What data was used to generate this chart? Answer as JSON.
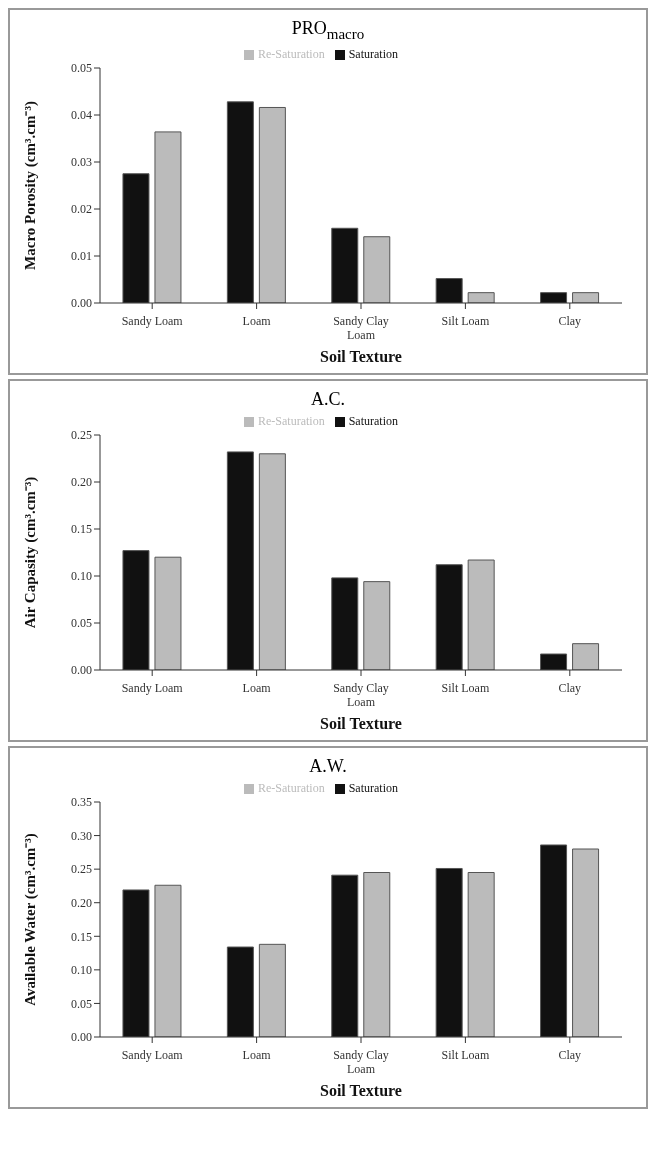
{
  "chart_data": [
    {
      "type": "bar",
      "title": "PRO$_{macro}$",
      "xlabel": "Soil Texture",
      "ylabel": "Macro Porosity (cm³.cm⁻³)",
      "categories": [
        "Sandy Loam",
        "Loam",
        "Sandy Clay Loam",
        "Silt Loam",
        "Clay"
      ],
      "series": [
        {
          "name": "Saturation",
          "color": "#111111",
          "values": [
            0.0275,
            0.0428,
            0.0159,
            0.0052,
            0.0022
          ]
        },
        {
          "name": "Re-Saturation",
          "color": "#bbbbbb",
          "values": [
            0.0364,
            0.0416,
            0.0141,
            0.0022,
            0.0022
          ]
        }
      ],
      "ylim": [
        0,
        0.05
      ],
      "yticks": [
        {
          "value": 0,
          "label": "0.00"
        },
        {
          "value": 0.01,
          "label": "0.01"
        },
        {
          "value": 0.02,
          "label": "0.02"
        },
        {
          "value": 0.03,
          "label": "0.03"
        },
        {
          "value": 0.04,
          "label": "0.04"
        },
        {
          "value": 0.05,
          "label": "0.05"
        }
      ],
      "grid": false,
      "legend": "top"
    },
    {
      "type": "bar",
      "title": "A.C.",
      "xlabel": "Soil Texture",
      "ylabel": "Air Capasity (cm³.cm⁻³)",
      "categories": [
        "Sandy Loam",
        "Loam",
        "Sandy Clay Loam",
        "Silt Loam",
        "Clay"
      ],
      "series": [
        {
          "name": "Saturation",
          "color": "#111111",
          "values": [
            0.127,
            0.232,
            0.098,
            0.112,
            0.017
          ]
        },
        {
          "name": "Re-Saturation",
          "color": "#bbbbbb",
          "values": [
            0.12,
            0.23,
            0.094,
            0.117,
            0.028
          ]
        }
      ],
      "ylim": [
        0,
        0.25
      ],
      "yticks": [
        {
          "value": 0,
          "label": "0.00"
        },
        {
          "value": 0.05,
          "label": "0.05"
        },
        {
          "value": 0.1,
          "label": "0.10"
        },
        {
          "value": 0.15,
          "label": "0.15"
        },
        {
          "value": 0.2,
          "label": "0.20"
        },
        {
          "value": 0.25,
          "label": "0.25"
        }
      ],
      "grid": false,
      "legend": "top"
    },
    {
      "type": "bar",
      "title": "A.W.",
      "xlabel": "Soil Texture",
      "ylabel": "Available Water (cm³.cm⁻³)",
      "categories": [
        "Sandy Loam",
        "Loam",
        "Sandy Clay Loam",
        "Silt Loam",
        "Clay"
      ],
      "series": [
        {
          "name": "Saturation",
          "color": "#111111",
          "values": [
            0.219,
            0.134,
            0.241,
            0.251,
            0.286
          ]
        },
        {
          "name": "Re-Saturation",
          "color": "#bbbbbb",
          "values": [
            0.226,
            0.138,
            0.245,
            0.245,
            0.28
          ]
        }
      ],
      "ylim": [
        0,
        0.35
      ],
      "yticks": [
        {
          "value": 0,
          "label": "0.00"
        },
        {
          "value": 0.05,
          "label": "0.05"
        },
        {
          "value": 0.1,
          "label": "0.10"
        },
        {
          "value": 0.15,
          "label": "0.15"
        },
        {
          "value": 0.2,
          "label": "0.20"
        },
        {
          "value": 0.25,
          "label": "0.25"
        },
        {
          "value": 0.3,
          "label": "0.30"
        },
        {
          "value": 0.35,
          "label": "0.35"
        }
      ],
      "grid": false,
      "legend": "top"
    }
  ]
}
